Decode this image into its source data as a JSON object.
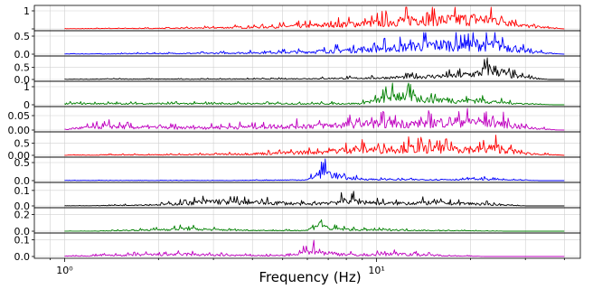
{
  "chart_data": {
    "type": "line",
    "title": "",
    "xlabel": "Frequency (Hz)",
    "x_scale": "log",
    "xlim": [
      0.8,
      45
    ],
    "x_ticks": [
      {
        "value": 1,
        "label": "10⁰"
      },
      {
        "value": 10,
        "label": "10¹"
      }
    ],
    "grid": true,
    "panels": [
      {
        "color": "#ff0000",
        "ylim": [
          0,
          1.2
        ],
        "yticks": [
          {
            "value": 0,
            "label": ""
          },
          {
            "value": 1,
            "label": "1"
          }
        ],
        "peaks": [
          [
            1.2,
            0.04
          ],
          [
            1.8,
            0.05
          ],
          [
            2.5,
            0.08
          ],
          [
            4,
            0.18
          ],
          [
            6,
            0.32
          ],
          [
            8,
            0.5
          ],
          [
            10,
            0.6
          ],
          [
            14.5,
            1.15
          ],
          [
            16,
            0.9
          ],
          [
            18,
            0.95
          ],
          [
            20,
            1.0
          ],
          [
            23,
            1.0
          ],
          [
            27,
            0.8
          ],
          [
            30,
            0.3
          ]
        ]
      },
      {
        "color": "#0000ff",
        "ylim": [
          0,
          0.6
        ],
        "yticks": [
          {
            "value": 0,
            "label": "0.0"
          },
          {
            "value": 0.5,
            "label": "0.5"
          }
        ],
        "peaks": [
          [
            1.5,
            0.03
          ],
          [
            3,
            0.05
          ],
          [
            6,
            0.12
          ],
          [
            9,
            0.25
          ],
          [
            12,
            0.35
          ],
          [
            14,
            0.45
          ],
          [
            18,
            0.5
          ],
          [
            22,
            0.5
          ],
          [
            25,
            0.45
          ],
          [
            28,
            0.3
          ],
          [
            30,
            0.15
          ]
        ]
      },
      {
        "color": "#000000",
        "ylim": [
          0,
          0.9
        ],
        "yticks": [
          {
            "value": 0,
            "label": "0.0"
          },
          {
            "value": 0.5,
            "label": "0.5"
          }
        ],
        "peaks": [
          [
            1.3,
            0.04
          ],
          [
            2.5,
            0.03
          ],
          [
            5,
            0.05
          ],
          [
            10,
            0.12
          ],
          [
            14,
            0.22
          ],
          [
            18,
            0.3
          ],
          [
            21,
            0.45
          ],
          [
            23,
            0.82
          ],
          [
            25,
            0.6
          ],
          [
            27,
            0.3
          ]
        ]
      },
      {
        "color": "#008000",
        "ylim": [
          0,
          1.2
        ],
        "yticks": [
          {
            "value": 0,
            "label": "0"
          },
          {
            "value": 1,
            "label": "1"
          }
        ],
        "peaks": [
          [
            9,
            0.25
          ],
          [
            10,
            0.4
          ],
          [
            11,
            0.9
          ],
          [
            12,
            1.0
          ],
          [
            13.5,
            0.7
          ],
          [
            15,
            0.55
          ],
          [
            17,
            0.5
          ],
          [
            19,
            0.4
          ],
          [
            21,
            0.5
          ],
          [
            23,
            0.35
          ],
          [
            25,
            0.25
          ],
          [
            28,
            0.15
          ]
        ]
      },
      {
        "color": "#bf00bf",
        "ylim": [
          0,
          0.075
        ],
        "yticks": [
          {
            "value": 0,
            "label": "0.00"
          },
          {
            "value": 0.05,
            "label": "0.05"
          }
        ],
        "peaks": [
          [
            1.05,
            0.01
          ],
          [
            1.4,
            0.025
          ],
          [
            1.7,
            0.018
          ],
          [
            2.3,
            0.015
          ],
          [
            3.5,
            0.02
          ],
          [
            5,
            0.025
          ],
          [
            7,
            0.03
          ],
          [
            9,
            0.04
          ],
          [
            11,
            0.045
          ],
          [
            13,
            0.04
          ],
          [
            16,
            0.05
          ],
          [
            19,
            0.06
          ],
          [
            21,
            0.055
          ],
          [
            23,
            0.05
          ],
          [
            26,
            0.04
          ],
          [
            29,
            0.02
          ]
        ]
      },
      {
        "color": "#ff0000",
        "ylim": [
          0,
          0.9
        ],
        "yticks": [
          {
            "value": 0,
            "label": "0.00"
          },
          {
            "value": 0.5,
            "label": "0.5"
          }
        ],
        "peaks": [
          [
            1.3,
            0.04
          ],
          [
            2.2,
            0.05
          ],
          [
            3.5,
            0.1
          ],
          [
            5,
            0.18
          ],
          [
            7,
            0.3
          ],
          [
            8.5,
            0.5
          ],
          [
            10,
            0.45
          ],
          [
            12,
            0.55
          ],
          [
            15,
            0.5
          ],
          [
            18,
            0.55
          ],
          [
            21,
            0.45
          ],
          [
            24,
            0.6
          ],
          [
            27,
            0.35
          ],
          [
            30,
            0.15
          ]
        ]
      },
      {
        "color": "#0000ff",
        "ylim": [
          0,
          0.6
        ],
        "yticks": [
          {
            "value": 0,
            "label": "0.0"
          },
          {
            "value": 0.5,
            "label": "0.5"
          }
        ],
        "peaks": [
          [
            4,
            0.02
          ],
          [
            6,
            0.04
          ],
          [
            6.8,
            0.5
          ],
          [
            7.3,
            0.3
          ],
          [
            8,
            0.12
          ],
          [
            10,
            0.06
          ],
          [
            14,
            0.05
          ],
          [
            18,
            0.06
          ],
          [
            22,
            0.08
          ],
          [
            26,
            0.04
          ]
        ]
      },
      {
        "color": "#000000",
        "ylim": [
          0,
          0.14
        ],
        "yticks": [
          {
            "value": 0,
            "label": "0.0"
          },
          {
            "value": 0.1,
            "label": "0.1"
          }
        ],
        "peaks": [
          [
            1.3,
            0.005
          ],
          [
            2,
            0.015
          ],
          [
            2.6,
            0.04
          ],
          [
            3,
            0.055
          ],
          [
            3.5,
            0.045
          ],
          [
            4.2,
            0.04
          ],
          [
            5,
            0.035
          ],
          [
            6,
            0.02
          ],
          [
            7.5,
            0.05
          ],
          [
            8.2,
            0.075
          ],
          [
            9,
            0.05
          ],
          [
            11,
            0.03
          ],
          [
            14,
            0.04
          ],
          [
            16,
            0.035
          ],
          [
            19,
            0.03
          ],
          [
            23,
            0.02
          ]
        ]
      },
      {
        "color": "#008000",
        "ylim": [
          0,
          0.26
        ],
        "yticks": [
          {
            "value": 0,
            "label": "0.0"
          },
          {
            "value": 0.2,
            "label": "0.2"
          }
        ],
        "peaks": [
          [
            1.3,
            0.005
          ],
          [
            2.1,
            0.04
          ],
          [
            2.4,
            0.06
          ],
          [
            3,
            0.035
          ],
          [
            4,
            0.02
          ],
          [
            5,
            0.015
          ],
          [
            6,
            0.02
          ],
          [
            6.6,
            0.2
          ],
          [
            7,
            0.06
          ],
          [
            9,
            0.03
          ],
          [
            11.5,
            0.03
          ],
          [
            15,
            0.015
          ],
          [
            20,
            0.01
          ]
        ]
      },
      {
        "color": "#bf00bf",
        "ylim": [
          0,
          0.13
        ],
        "yticks": [
          {
            "value": 0,
            "label": "0.0"
          },
          {
            "value": 0.1,
            "label": "0.1"
          }
        ],
        "peaks": [
          [
            1.2,
            0.01
          ],
          [
            1.8,
            0.02
          ],
          [
            2.5,
            0.025
          ],
          [
            3.2,
            0.015
          ],
          [
            4.5,
            0.01
          ],
          [
            5.5,
            0.015
          ],
          [
            6.3,
            0.09
          ],
          [
            6.6,
            0.05
          ],
          [
            7.5,
            0.03
          ],
          [
            9,
            0.015
          ],
          [
            11.5,
            0.035
          ],
          [
            14,
            0.02
          ],
          [
            17,
            0.01
          ]
        ]
      }
    ]
  }
}
